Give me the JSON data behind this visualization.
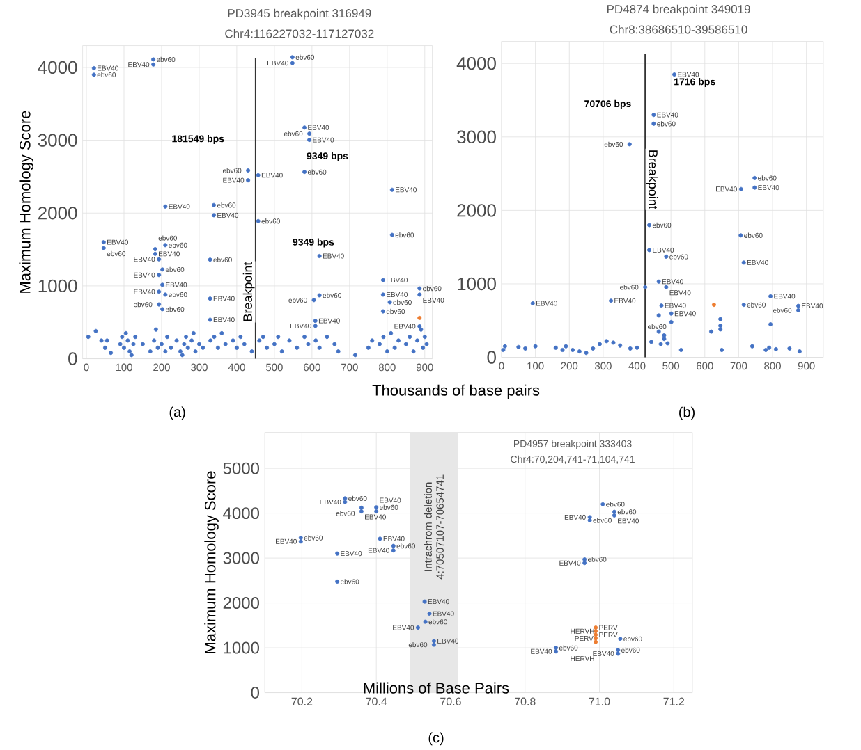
{
  "chart_data": [
    {
      "type": "scatter",
      "title": "PD3945 breakpoint 316949",
      "subtitle": "Chr4:116227032-117127032",
      "xlabel": "Thousands of base pairs",
      "ylabel": "Maximum Homology Score",
      "marker": "circle",
      "grid": true,
      "xlim": [
        -10,
        920
      ],
      "ylim": [
        0,
        4300
      ],
      "xticks": [
        0,
        100,
        200,
        300,
        400,
        500,
        600,
        700,
        800,
        900
      ],
      "yticks": [
        0,
        1000,
        2000,
        3000,
        4000
      ],
      "series": [
        {
          "color": "#4472c4",
          "x": [
            20,
            20,
            178,
            178,
            548,
            548,
            580,
            593,
            593,
            430,
            430,
            457,
            580,
            813,
            210,
            339,
            339,
            457,
            813,
            46,
            46,
            183,
            183,
            210,
            193,
            202,
            193,
            329,
            620,
            202,
            193,
            210,
            193,
            202,
            329,
            329,
            605,
            620,
            609,
            609,
            789,
            789,
            807,
            789,
            886,
            886,
            886,
            5,
            25,
            40,
            50,
            55,
            65,
            90,
            95,
            100,
            105,
            110,
            115,
            120,
            125,
            130,
            150,
            170,
            180,
            185,
            190,
            200,
            210,
            215,
            225,
            240,
            250,
            255,
            260,
            265,
            270,
            280,
            285,
            290,
            300,
            310,
            330,
            340,
            350,
            360,
            370,
            390,
            400,
            410,
            420,
            440,
            460,
            470,
            480,
            500,
            510,
            520,
            540,
            560,
            580,
            590,
            610,
            620,
            640,
            660,
            670,
            715,
            750,
            760,
            780,
            790,
            800,
            810,
            820,
            830,
            850,
            860,
            870,
            880,
            890,
            895,
            900,
            905
          ],
          "values": [
            3990,
            3900,
            4110,
            4040,
            4140,
            4060,
            3175,
            3090,
            3005,
            2585,
            2450,
            2520,
            2565,
            2320,
            2090,
            2110,
            1970,
            1890,
            1700,
            1600,
            1520,
            1505,
            1440,
            1560,
            1365,
            1225,
            1150,
            1360,
            1410,
            1015,
            920,
            880,
            745,
            680,
            825,
            535,
            805,
            870,
            520,
            450,
            1080,
            880,
            775,
            650,
            965,
            880,
            445,
            300,
            380,
            250,
            150,
            250,
            80,
            200,
            300,
            150,
            350,
            250,
            100,
            50,
            200,
            300,
            200,
            100,
            250,
            400,
            150,
            200,
            100,
            300,
            150,
            250,
            100,
            50,
            200,
            300,
            150,
            250,
            350,
            100,
            200,
            150,
            250,
            300,
            150,
            350,
            200,
            250,
            150,
            300,
            200,
            100,
            250,
            300,
            150,
            200,
            300,
            100,
            250,
            150,
            300,
            200,
            250,
            150,
            300,
            200,
            100,
            50,
            150,
            250,
            200,
            300,
            100,
            350,
            150,
            250,
            200,
            300,
            100,
            250,
            400,
            150,
            300,
            200
          ],
          "value_labels": [
            "EBV40",
            "ebv60",
            "ebv60",
            "EBV40",
            "ebv60",
            "EBV40",
            "EBV40",
            "ebv60",
            "EBV40",
            "ebv60",
            "EBV40",
            "EBV40",
            "ebv60",
            "EBV40",
            "EBV40",
            "ebv60",
            "EBV40",
            "ebv60",
            "ebv60",
            "EBV40",
            "ebv60",
            "ebv60",
            "EBV40",
            "ebv60",
            "EBV40",
            "ebv60",
            "EBV40",
            "ebv60",
            "EBV40",
            "EBV40",
            "EBV40",
            "ebv60",
            "ebv60",
            "ebv60",
            "EBV40",
            "EBV40",
            "ebv60",
            "ebv60",
            "EBV40",
            "EBV40",
            "EBV40",
            "EBV40",
            "ebv60",
            "ebv60",
            "ebv60",
            "EBV40",
            "EBV40",
            null,
            null,
            null,
            null,
            null,
            null,
            null,
            null,
            null,
            null,
            null,
            null,
            null,
            null,
            null,
            null,
            null,
            null,
            null,
            null,
            null,
            null,
            null,
            null,
            null,
            null,
            null,
            null,
            null,
            null,
            null,
            null,
            null,
            null,
            null,
            null,
            null,
            null,
            null,
            null,
            null,
            null,
            null,
            null,
            null,
            null,
            null,
            null,
            null,
            null,
            null,
            null,
            null,
            null,
            null,
            null,
            null,
            null,
            null,
            null,
            null,
            null,
            null,
            null,
            null,
            null,
            null,
            null,
            null,
            null,
            null,
            null,
            null,
            null,
            null,
            null,
            null
          ]
        },
        {
          "color": "#ed7d31",
          "x": [
            886
          ],
          "values": [
            560
          ],
          "value_labels": [
            null
          ]
        }
      ],
      "ref_lines": [
        {
          "axis": "x",
          "value": 450,
          "label": "Breakpoint"
        }
      ],
      "annotations": [
        "(a)",
        "181549 bps",
        "9349 bps",
        "9349 bps"
      ]
    },
    {
      "type": "scatter",
      "title": "PD4874 breakpoint 349019",
      "subtitle": "Chr8:38686510-39586510",
      "marker": "circle",
      "grid": true,
      "xlim": [
        0,
        950
      ],
      "ylim": [
        0,
        4300
      ],
      "xticks": [
        0,
        100,
        200,
        300,
        400,
        500,
        600,
        700,
        800,
        900
      ],
      "yticks": [
        0,
        1000,
        2000,
        3000,
        4000
      ],
      "series": [
        {
          "color": "#4472c4",
          "x": [
            510,
            449,
            449,
            378,
            747,
            707,
            747,
            436,
            706,
            436,
            486,
            715,
            424,
            464,
            486,
            92,
            323,
            472,
            501,
            464,
            794,
            715,
            876,
            876,
            464,
            794,
            619,
            646,
            646,
            646,
            501,
            480,
            480,
            442,
            470,
            490,
            5,
            10,
            50,
            70,
            100,
            160,
            180,
            190,
            210,
            230,
            250,
            270,
            290,
            310,
            330,
            350,
            380,
            400,
            530,
            650,
            740,
            780,
            790,
            810,
            850,
            880
          ],
          "values": [
            3850,
            3300,
            3180,
            2900,
            2440,
            2290,
            2310,
            1800,
            1660,
            1460,
            1370,
            1290,
            955,
            1030,
            955,
            735,
            770,
            705,
            595,
            570,
            830,
            715,
            700,
            640,
            350,
            450,
            350,
            520,
            430,
            380,
            480,
            300,
            250,
            210,
            180,
            190,
            100,
            150,
            140,
            120,
            150,
            130,
            100,
            150,
            100,
            80,
            60,
            120,
            180,
            220,
            200,
            160,
            120,
            130,
            100,
            100,
            150,
            100,
            130,
            110,
            120,
            80
          ],
          "value_labels": [
            "EBV40",
            "EBV40",
            "ebv60",
            "ebv60",
            "ebv60",
            "EBV40",
            "EBV40",
            "ebv60",
            "ebv60",
            "EBV40",
            "ebv60",
            "EBV40",
            "ebv60",
            "EBV40",
            "EBV40",
            "EBV40",
            "EBV40",
            "EBV40",
            "EBV40",
            "ebv60",
            "EBV40",
            "ebv60",
            "EBV40",
            "ebv60",
            null,
            null,
            null,
            null,
            null,
            null,
            null,
            null,
            null,
            null,
            null,
            null,
            null,
            null,
            null,
            null,
            null,
            null,
            null,
            null,
            null,
            null,
            null,
            null,
            null,
            null,
            null,
            null,
            null,
            null,
            null,
            null,
            null,
            null,
            null,
            null,
            null,
            null
          ]
        },
        {
          "color": "#ed7d31",
          "x": [
            627
          ],
          "values": [
            715
          ],
          "value_labels": [
            null
          ]
        }
      ],
      "ref_lines": [
        {
          "axis": "x",
          "value": 424,
          "label": "Breakpoint"
        }
      ],
      "annotations": [
        "(b)",
        "1716 bps",
        "70706 bps"
      ]
    },
    {
      "type": "scatter",
      "title": "PD4957 breakpoint 333403",
      "subtitle": "Chr4:70,204,741-71,104,741",
      "xlabel": "Millions of Base Pairs",
      "ylabel": "Maximum Homology Score",
      "marker": "circle",
      "grid": true,
      "xlim": [
        70.1,
        71.25
      ],
      "ylim": [
        0,
        5800
      ],
      "xticks": [
        70.2,
        70.4,
        70.6,
        70.8,
        {
          "value": 71,
          "label": "71.0"
        },
        71.2
      ],
      "yticks": [
        0,
        1000,
        2000,
        3000,
        4000,
        5000
      ],
      "series": [
        {
          "color": "#4472c4",
          "x": [
            70.316,
            70.316,
            70.36,
            70.36,
            70.4,
            70.4,
            70.197,
            70.197,
            70.41,
            70.446,
            70.446,
            70.295,
            70.295,
            70.53,
            70.543,
            70.532,
            70.512,
            70.555,
            70.555,
            71.009,
            70.974,
            70.974,
            71.04,
            71.04,
            70.96,
            70.96,
            71.056,
            70.883,
            70.883,
            71.05,
            71.05
          ],
          "values": [
            4330,
            4250,
            4120,
            4040,
            4130,
            4040,
            3450,
            3370,
            3430,
            3270,
            3170,
            3100,
            2475,
            2030,
            1760,
            1580,
            1450,
            1150,
            1070,
            4200,
            3910,
            3840,
            4030,
            3950,
            2970,
            2890,
            1200,
            1000,
            920,
            950,
            870
          ],
          "value_labels": [
            "ebv60",
            "EBV40",
            "ebv60",
            "EBV40",
            "ebv60",
            "EBV40",
            "ebv60",
            "EBV40",
            "EBV40",
            "ebv60",
            "EBV40",
            "EBV40",
            "ebv60",
            "EBV40",
            "EBV40",
            "ebv60",
            "EBV40",
            "EBV40",
            "ebv60",
            "ebv60",
            "EBV40",
            "ebv60",
            "ebv60",
            "EBV40",
            "ebv60",
            "EBV40",
            "ebv60",
            "ebv60",
            "EBV40",
            "ebv60",
            "EBV40"
          ]
        },
        {
          "color": "#ed7d31",
          "x": [
            70.99,
            70.99,
            70.99,
            70.99,
            70.99
          ],
          "values": [
            1450,
            1370,
            1290,
            1210,
            1130
          ],
          "value_labels": [
            "PERV",
            "HERVH",
            "PERV",
            "PERV",
            "HERVH"
          ]
        }
      ],
      "bands": [
        {
          "axis": "x",
          "from": 70.49,
          "to": 70.62,
          "label": "Intrachrom deletion 4:70507107-70654741",
          "color": "#e7e7e7"
        }
      ],
      "annotations": [
        "(c)"
      ]
    }
  ]
}
